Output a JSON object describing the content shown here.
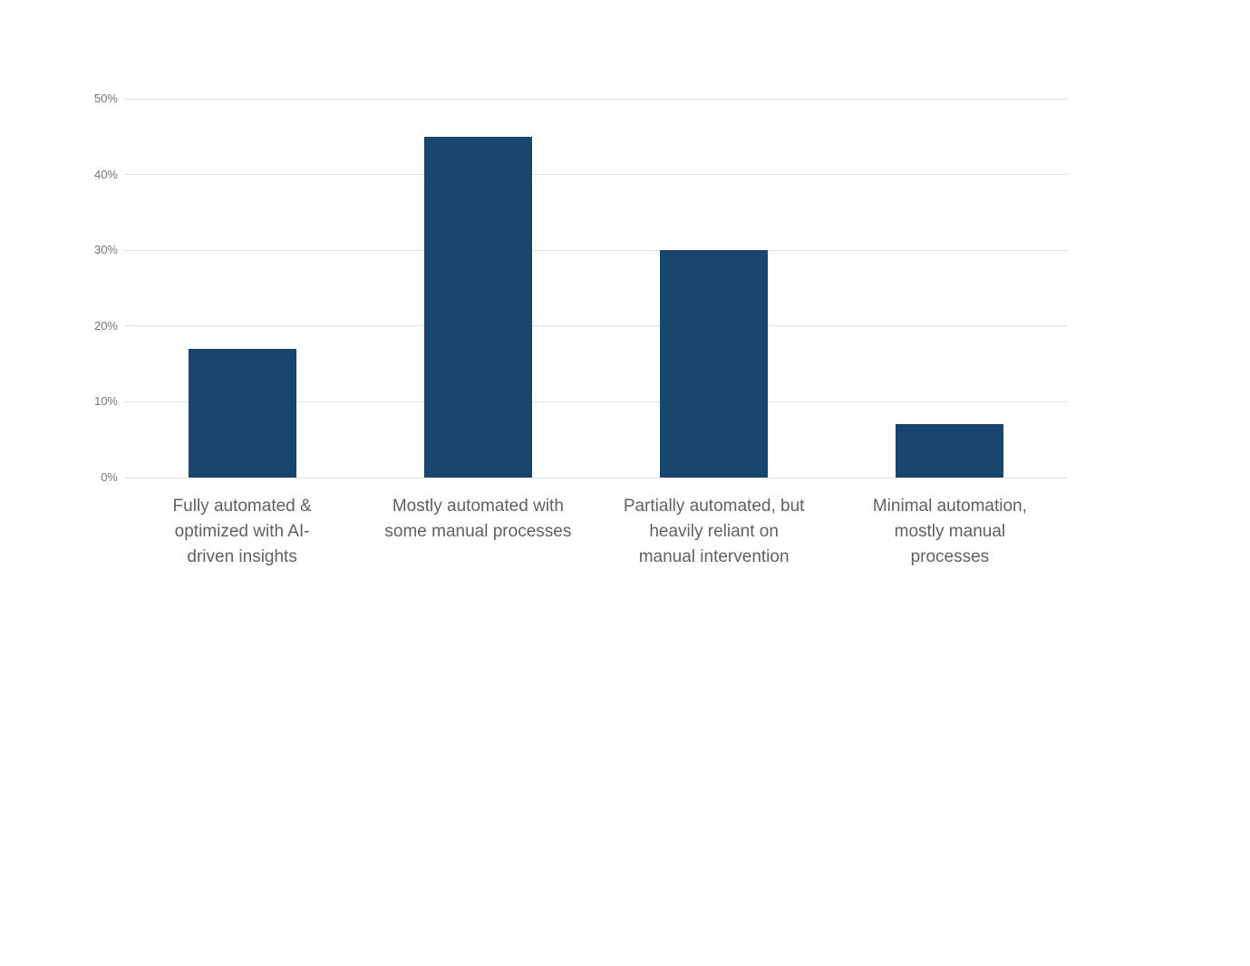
{
  "chart_data": {
    "type": "bar",
    "title": "",
    "categories": [
      "Fully automated & optimized with AI-driven insights",
      "Mostly automated with some manual processes",
      "Partially automated, but heavily reliant on manual intervention",
      "Minimal automation, mostly manual processes"
    ],
    "category_lines": [
      [
        "Fully automated &",
        "optimized with AI-",
        "driven insights"
      ],
      [
        "Mostly automated with",
        "some manual processes"
      ],
      [
        "Partially automated, but",
        "heavily reliant on",
        "manual intervention"
      ],
      [
        "Minimal automation,",
        "mostly manual",
        "processes"
      ]
    ],
    "values": [
      17,
      45,
      30,
      7
    ],
    "unit": "%",
    "xlabel": "",
    "ylabel": "",
    "ylim": [
      0,
      50
    ],
    "yticks": [
      0,
      10,
      20,
      30,
      40,
      50
    ],
    "ytick_labels": [
      "0%",
      "10%",
      "20%",
      "30%",
      "40%",
      "50%"
    ],
    "grid": "horizontal",
    "legend_position": "none",
    "colors": {
      "bar": "#17456B",
      "gridline": "#e0e0e0",
      "ytick_text": "#757575",
      "category_text": "#616161",
      "background": "#ffffff"
    }
  }
}
